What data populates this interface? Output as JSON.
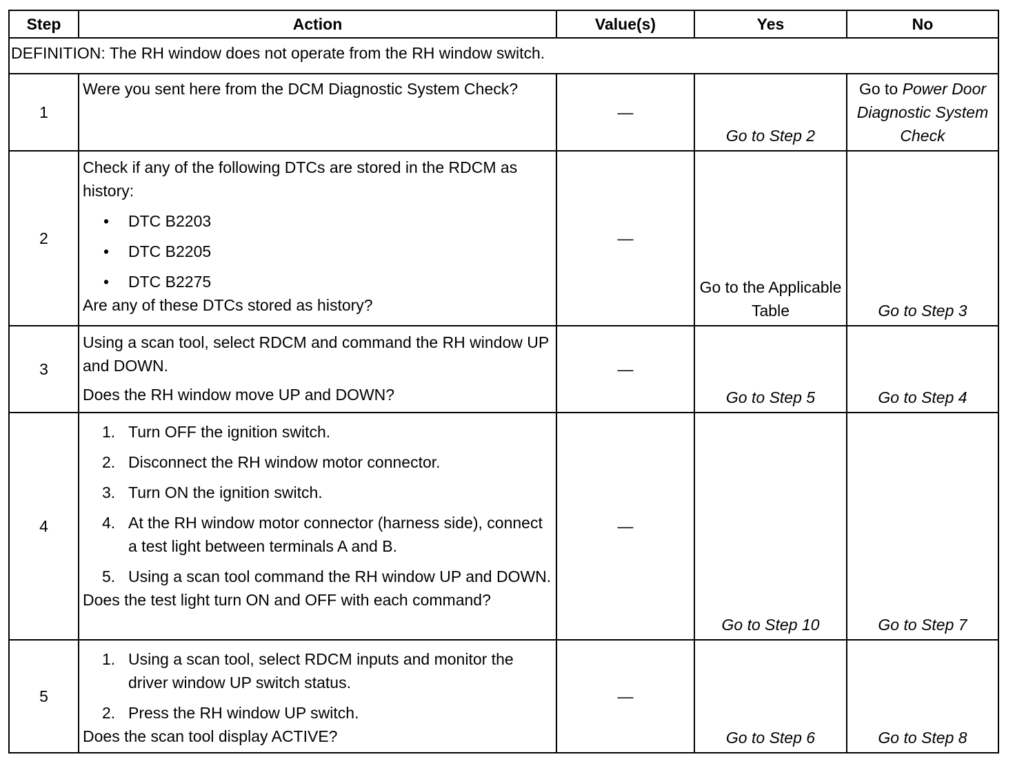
{
  "headers": [
    "Step",
    "Action",
    "Value(s)",
    "Yes",
    "No"
  ],
  "definition": "DEFINITION: The RH window does not operate from the RH window switch.",
  "rows": [
    {
      "step": "1",
      "action": {
        "intro": "Were you sent here from the DCM Diagnostic System Check?"
      },
      "value": "—",
      "yes": "Go to Step 2",
      "no_prefix": "Go to",
      "no": "Power Door Diagnostic System Check"
    },
    {
      "step": "2",
      "action": {
        "intro": "Check if any of the following DTCs are stored in the RDCM as history:",
        "bullets": [
          "DTC B2203",
          "DTC B2205",
          "DTC B2275"
        ],
        "question": "Are any of these DTCs stored as history?"
      },
      "value": "—",
      "yes": "Go to the Applicable Table",
      "no": "Go to Step 3"
    },
    {
      "step": "3",
      "action": {
        "intro": "Using a scan tool, select RDCM and command the RH window UP and DOWN.",
        "question": "Does the RH window move UP and DOWN?"
      },
      "value": "—",
      "yes": "Go to Step 5",
      "no": "Go to Step 4"
    },
    {
      "step": "4",
      "action": {
        "steps": [
          "Turn OFF the ignition switch.",
          "Disconnect the RH window motor connector.",
          "Turn ON the ignition switch.",
          "At the RH window motor connector (harness side), connect a test light between terminals A and B.",
          "Using a scan tool command the RH window UP and DOWN."
        ],
        "question": "Does the test light turn ON and OFF with each command?"
      },
      "value": "—",
      "yes": "Go to Step 10",
      "no": "Go to Step 7"
    },
    {
      "step": "5",
      "action": {
        "steps": [
          "Using a scan tool, select RDCM inputs and monitor the driver window UP switch status.",
          "Press the RH window UP switch."
        ],
        "question": "Does the scan tool display ACTIVE?"
      },
      "value": "—",
      "yes": "Go to Step 6",
      "no": "Go to Step 8"
    }
  ]
}
